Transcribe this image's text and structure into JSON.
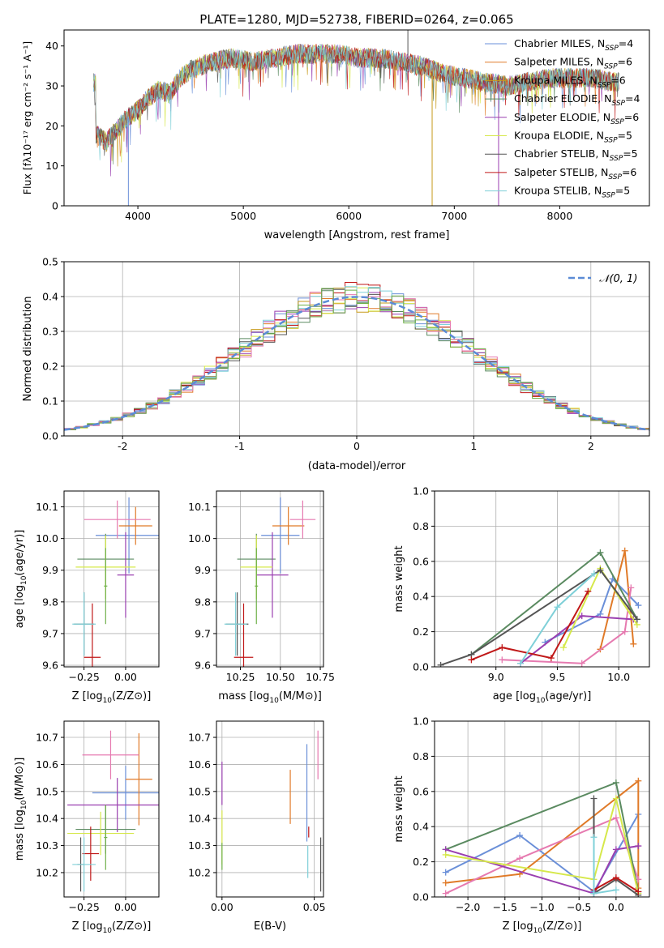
{
  "colors": {
    "chabrier_miles": "#6a8fd8",
    "salpeter_miles": "#e07a28",
    "kroupa_miles": "#c79a1a",
    "chabrier_elodie": "#5a8a60",
    "salpeter_elodie": "#9a3fb0",
    "kroupa_elodie": "#d6e84a",
    "chabrier_stelib": "#555555",
    "salpeter_stelib": "#c01818",
    "kroupa_stelib": "#7fd0d8",
    "pink": "#e67ab0",
    "green": "#6fb04a",
    "gaussian": "#5b8bd6",
    "grid": "#b0b0b0"
  },
  "chart_data": [
    {
      "type": "line",
      "title": "PLATE=1280, MJD=52738, FIBERID=0264, z=0.065",
      "xlabel": "wavelength [Angstrom, rest frame]",
      "ylabel": "Flux [fλ10⁻¹⁷ erg cm⁻² s⁻¹ A⁻¹]",
      "xlim": [
        3300,
        8850
      ],
      "ylim": [
        0,
        44
      ],
      "xticks": [
        4000,
        5000,
        6000,
        7000,
        8000
      ],
      "yticks": [
        0,
        10,
        20,
        30,
        40
      ],
      "legend_position": "top-right",
      "legend": [
        {
          "label": "Chabrier MILES, N",
          "sub": "SSP",
          "eq": "=4",
          "color_key": "chabrier_miles"
        },
        {
          "label": "Salpeter MILES, N",
          "sub": "SSP",
          "eq": "=6",
          "color_key": "salpeter_miles"
        },
        {
          "label": "Kroupa MILES, N",
          "sub": "SSP",
          "eq": "=6",
          "color_key": "kroupa_miles"
        },
        {
          "label": "Chabrier ELODIE, N",
          "sub": "SSP",
          "eq": "=4",
          "color_key": "chabrier_elodie"
        },
        {
          "label": "Salpeter ELODIE, N",
          "sub": "SSP",
          "eq": "=6",
          "color_key": "salpeter_elodie"
        },
        {
          "label": "Kroupa ELODIE, N",
          "sub": "SSP",
          "eq": "=5",
          "color_key": "kroupa_elodie"
        },
        {
          "label": "Chabrier STELIB, N",
          "sub": "SSP",
          "eq": "=5",
          "color_key": "chabrier_stelib"
        },
        {
          "label": "Salpeter STELIB, N",
          "sub": "SSP",
          "eq": "=6",
          "color_key": "salpeter_stelib"
        },
        {
          "label": "Kroupa STELIB, N",
          "sub": "SSP",
          "eq": "=5",
          "color_key": "kroupa_stelib"
        }
      ],
      "continuum": [
        [
          3600,
          18
        ],
        [
          3700,
          16
        ],
        [
          3800,
          19
        ],
        [
          3900,
          22
        ],
        [
          4000,
          24
        ],
        [
          4100,
          27
        ],
        [
          4200,
          29
        ],
        [
          4300,
          28
        ],
        [
          4400,
          32
        ],
        [
          4500,
          34
        ],
        [
          4700,
          36
        ],
        [
          4900,
          37
        ],
        [
          5100,
          36
        ],
        [
          5300,
          37
        ],
        [
          5500,
          38
        ],
        [
          5700,
          38
        ],
        [
          5900,
          38
        ],
        [
          6100,
          37
        ],
        [
          6300,
          37
        ],
        [
          6500,
          36
        ],
        [
          6700,
          35
        ],
        [
          6900,
          33
        ],
        [
          7100,
          32
        ],
        [
          7300,
          31
        ],
        [
          7500,
          30
        ],
        [
          7700,
          31
        ],
        [
          7900,
          32
        ],
        [
          8100,
          32
        ],
        [
          8300,
          32
        ],
        [
          8500,
          31
        ]
      ],
      "noise_amplitude": 2.5,
      "spikes": [
        [
          3910,
          0
        ],
        [
          6790,
          0
        ],
        [
          7420,
          0
        ],
        [
          6560,
          44
        ]
      ]
    },
    {
      "type": "histogram",
      "xlabel": "(data-model)/error",
      "ylabel": "Normed distribution",
      "xlim": [
        -2.5,
        2.5
      ],
      "ylim": [
        0,
        0.5
      ],
      "xticks": [
        -2,
        -1,
        0,
        1,
        2
      ],
      "yticks": [
        0.0,
        0.1,
        0.2,
        0.3,
        0.4,
        0.5
      ],
      "gaussian_label": "𝒩(0, 1)",
      "gaussian_mu": 0,
      "gaussian_sigma": 1,
      "bin_width": 0.1,
      "series_count": 9
    },
    {
      "type": "scatter",
      "subtype": "errorbar",
      "xlabel_main": "Z [log",
      "xlabel_sub": "10",
      "xlabel_rest": "(Z/Z⊙)]",
      "ylabel_main": "age  [log",
      "ylabel_sub": "10",
      "ylabel_rest": "(age/yr)]",
      "xlim": [
        -0.37,
        0.2
      ],
      "ylim": [
        9.595,
        10.15
      ],
      "xticks": [
        -0.25,
        0.0
      ],
      "xtick_labels": [
        "−0.25",
        "0.00"
      ],
      "yticks": [
        9.6,
        9.7,
        9.8,
        9.9,
        10.0,
        10.1
      ],
      "points": [
        {
          "x": 0.02,
          "y": 10.01,
          "xerr": 0.2,
          "yerr": 0.12,
          "color_key": "chabrier_miles"
        },
        {
          "x": 0.06,
          "y": 10.04,
          "xerr": 0.1,
          "yerr": 0.06,
          "color_key": "salpeter_miles"
        },
        {
          "x": -0.05,
          "y": 10.06,
          "xerr": 0.2,
          "yerr": 0.06,
          "color_key": "pink"
        },
        {
          "x": -0.12,
          "y": 9.935,
          "xerr": 0.17,
          "yerr": 0.08,
          "color_key": "chabrier_elodie"
        },
        {
          "x": 0.0,
          "y": 9.885,
          "xerr": 0.05,
          "yerr": 0.135,
          "color_key": "salpeter_elodie"
        },
        {
          "x": -0.12,
          "y": 9.91,
          "xerr": 0.18,
          "yerr": 0.1,
          "color_key": "kroupa_elodie"
        },
        {
          "x": -0.12,
          "y": 9.85,
          "xerr": 0.01,
          "yerr": 0.12,
          "color_key": "green"
        },
        {
          "x": -0.25,
          "y": 9.73,
          "xerr": 0.06,
          "yerr": 0.1,
          "color_key": "chabrier_stelib"
        },
        {
          "x": -0.2,
          "y": 9.625,
          "xerr": 0.05,
          "yerr": 0.17,
          "color_key": "salpeter_stelib"
        },
        {
          "x": -0.25,
          "y": 9.73,
          "xerr": 0.07,
          "yerr": 0.1,
          "color_key": "kroupa_stelib"
        }
      ]
    },
    {
      "type": "scatter",
      "subtype": "errorbar",
      "xlabel_main": "mass [log",
      "xlabel_sub": "10",
      "xlabel_rest": "(M/M⊙)]",
      "xlim": [
        10.1,
        10.77
      ],
      "ylim": [
        9.595,
        10.15
      ],
      "xticks": [
        10.25,
        10.5,
        10.75
      ],
      "xtick_labels": [
        "10.25",
        "10.50",
        "10.75"
      ],
      "yticks": [
        9.6,
        9.7,
        9.8,
        9.9,
        10.0,
        10.1
      ],
      "points": [
        {
          "x": 10.5,
          "y": 10.01,
          "xerr": 0.12,
          "yerr": 0.12,
          "color_key": "chabrier_miles"
        },
        {
          "x": 10.55,
          "y": 10.04,
          "xerr": 0.1,
          "yerr": 0.06,
          "color_key": "salpeter_miles"
        },
        {
          "x": 10.64,
          "y": 10.06,
          "xerr": 0.08,
          "yerr": 0.06,
          "color_key": "pink"
        },
        {
          "x": 10.35,
          "y": 9.935,
          "xerr": 0.12,
          "yerr": 0.08,
          "color_key": "chabrier_elodie"
        },
        {
          "x": 10.45,
          "y": 9.885,
          "xerr": 0.1,
          "yerr": 0.135,
          "color_key": "salpeter_elodie"
        },
        {
          "x": 10.35,
          "y": 9.91,
          "xerr": 0.1,
          "yerr": 0.1,
          "color_key": "kroupa_elodie"
        },
        {
          "x": 10.35,
          "y": 9.85,
          "xerr": 0.01,
          "yerr": 0.12,
          "color_key": "green"
        },
        {
          "x": 10.23,
          "y": 9.73,
          "xerr": 0.07,
          "yerr": 0.1,
          "color_key": "chabrier_stelib"
        },
        {
          "x": 10.27,
          "y": 9.625,
          "xerr": 0.06,
          "yerr": 0.17,
          "color_key": "salpeter_stelib"
        },
        {
          "x": 10.22,
          "y": 9.73,
          "xerr": 0.07,
          "yerr": 0.1,
          "color_key": "kroupa_stelib"
        }
      ]
    },
    {
      "type": "line",
      "xlabel_main": "age  [log",
      "xlabel_sub": "10",
      "xlabel_rest": "(age/yr)]",
      "ylabel": "mass weight",
      "xlim": [
        8.5,
        10.25
      ],
      "ylim": [
        0,
        1
      ],
      "xticks": [
        9.0,
        9.5,
        10.0
      ],
      "xtick_labels": [
        "9.0",
        "9.5",
        "10.0"
      ],
      "yticks": [
        0.0,
        0.2,
        0.4,
        0.6,
        0.8,
        1.0
      ],
      "series": [
        {
          "color_key": "chabrier_miles",
          "points": [
            [
              9.4,
              0.14
            ],
            [
              9.85,
              0.3
            ],
            [
              9.95,
              0.5
            ],
            [
              10.16,
              0.35
            ]
          ]
        },
        {
          "color_key": "salpeter_miles",
          "points": [
            [
              9.85,
              0.1
            ],
            [
              10.05,
              0.66
            ],
            [
              10.12,
              0.13
            ]
          ]
        },
        {
          "color_key": "pink",
          "points": [
            [
              9.05,
              0.04
            ],
            [
              9.7,
              0.02
            ],
            [
              10.05,
              0.2
            ],
            [
              10.1,
              0.45
            ]
          ]
        },
        {
          "color_key": "chabrier_elodie",
          "points": [
            [
              8.8,
              0.07
            ],
            [
              9.85,
              0.65
            ],
            [
              10.15,
              0.27
            ]
          ]
        },
        {
          "color_key": "salpeter_elodie",
          "points": [
            [
              9.2,
              0.02
            ],
            [
              9.7,
              0.29
            ],
            [
              10.12,
              0.27
            ]
          ]
        },
        {
          "color_key": "kroupa_elodie",
          "points": [
            [
              9.55,
              0.11
            ],
            [
              9.85,
              0.56
            ],
            [
              10.15,
              0.24
            ]
          ]
        },
        {
          "color_key": "chabrier_stelib",
          "points": [
            [
              8.55,
              0.01
            ],
            [
              8.8,
              0.07
            ],
            [
              9.85,
              0.55
            ],
            [
              10.15,
              0.27
            ]
          ]
        },
        {
          "color_key": "salpeter_stelib",
          "points": [
            [
              8.8,
              0.04
            ],
            [
              9.05,
              0.11
            ],
            [
              9.45,
              0.05
            ],
            [
              9.75,
              0.43
            ]
          ]
        },
        {
          "color_key": "kroupa_stelib",
          "points": [
            [
              9.2,
              0.02
            ],
            [
              9.5,
              0.34
            ],
            [
              9.8,
              0.53
            ]
          ]
        }
      ]
    },
    {
      "type": "scatter",
      "subtype": "errorbar",
      "xlabel_main": "Z [log",
      "xlabel_sub": "10",
      "xlabel_rest": "(Z/Z⊙)]",
      "ylabel_main": "mass [log",
      "ylabel_sub": "10",
      "ylabel_rest": "(M/M⊙)]",
      "xlim": [
        -0.37,
        0.2
      ],
      "ylim": [
        10.11,
        10.76
      ],
      "xticks": [
        -0.25,
        0.0
      ],
      "xtick_labels": [
        "−0.25",
        "0.00"
      ],
      "yticks": [
        10.2,
        10.3,
        10.4,
        10.5,
        10.6,
        10.7
      ],
      "points": [
        {
          "x": 0.0,
          "y": 10.495,
          "xerr": 0.2,
          "yerr": 0.1,
          "color_key": "chabrier_miles"
        },
        {
          "x": 0.08,
          "y": 10.545,
          "xerr": 0.08,
          "yerr": 0.17,
          "color_key": "salpeter_miles"
        },
        {
          "x": -0.09,
          "y": 10.635,
          "xerr": 0.17,
          "yerr": 0.09,
          "color_key": "pink"
        },
        {
          "x": -0.12,
          "y": 10.36,
          "xerr": 0.18,
          "yerr": 0.09,
          "color_key": "chabrier_elodie"
        },
        {
          "x": -0.05,
          "y": 10.45,
          "xerr": 0.3,
          "yerr": 0.1,
          "color_key": "salpeter_elodie"
        },
        {
          "x": -0.15,
          "y": 10.345,
          "xerr": 0.2,
          "yerr": 0.08,
          "color_key": "kroupa_elodie"
        },
        {
          "x": -0.12,
          "y": 10.33,
          "xerr": 0.01,
          "yerr": 0.12,
          "color_key": "green"
        },
        {
          "x": -0.27,
          "y": 10.23,
          "xerr": 0.02,
          "yerr": 0.1,
          "color_key": "chabrier_stelib"
        },
        {
          "x": -0.21,
          "y": 10.27,
          "xerr": 0.05,
          "yerr": 0.1,
          "color_key": "salpeter_stelib"
        },
        {
          "x": -0.25,
          "y": 10.23,
          "xerr": 0.07,
          "yerr": 0.1,
          "color_key": "kroupa_stelib"
        }
      ]
    },
    {
      "type": "scatter",
      "subtype": "errorbar",
      "xlabel": "E(B-V)",
      "xlim": [
        -0.003,
        0.055
      ],
      "ylim": [
        10.11,
        10.76
      ],
      "xticks": [
        0.0,
        0.05
      ],
      "xtick_labels": [
        "0.00",
        "0.05"
      ],
      "yticks": [
        10.2,
        10.3,
        10.4,
        10.5,
        10.6,
        10.7
      ],
      "points": [
        {
          "x": 0.0,
          "y": 10.53,
          "yerr": 0.08,
          "color_key": "salpeter_elodie"
        },
        {
          "x": 0.0,
          "y": 10.33,
          "yerr": 0.1,
          "color_key": "kroupa_elodie"
        },
        {
          "x": 0.0,
          "y": 10.26,
          "yerr": 0.05,
          "color_key": "green"
        },
        {
          "x": 0.037,
          "y": 10.48,
          "yerr": 0.1,
          "color_key": "salpeter_miles"
        },
        {
          "x": 0.046,
          "y": 10.495,
          "yerr": 0.18,
          "color_key": "chabrier_miles"
        },
        {
          "x": 0.0465,
          "y": 10.24,
          "yerr": 0.06,
          "color_key": "kroupa_stelib"
        },
        {
          "x": 0.047,
          "y": 10.35,
          "yerr": 0.02,
          "color_key": "salpeter_stelib"
        },
        {
          "x": 0.052,
          "y": 10.635,
          "yerr": 0.09,
          "color_key": "pink"
        },
        {
          "x": 0.0535,
          "y": 10.23,
          "yerr": 0.1,
          "color_key": "chabrier_stelib"
        }
      ]
    },
    {
      "type": "line",
      "xlabel_main": "Z [log",
      "xlabel_sub": "10",
      "xlabel_rest": "(Z/Z⊙)]",
      "ylabel": "mass weight",
      "xlim": [
        -2.45,
        0.45
      ],
      "ylim": [
        0,
        1
      ],
      "xticks": [
        -2.0,
        -1.5,
        -1.0,
        -0.5,
        0.0
      ],
      "xtick_labels": [
        "−2.0",
        "−1.5",
        "−1.0",
        "−0.5",
        "0.0"
      ],
      "yticks": [
        0.0,
        0.2,
        0.4,
        0.6,
        0.8,
        1.0
      ],
      "series": [
        {
          "color_key": "chabrier_miles",
          "points": [
            [
              -2.3,
              0.14
            ],
            [
              -1.3,
              0.35
            ],
            [
              -0.3,
              0.03
            ],
            [
              0.3,
              0.47
            ]
          ]
        },
        {
          "color_key": "salpeter_miles",
          "points": [
            [
              -2.3,
              0.08
            ],
            [
              -1.3,
              0.13
            ],
            [
              0.3,
              0.66
            ],
            [
              0.3,
              0.05
            ]
          ]
        },
        {
          "color_key": "pink",
          "points": [
            [
              -2.3,
              0.02
            ],
            [
              -1.3,
              0.22
            ],
            [
              0.0,
              0.45
            ],
            [
              0.3,
              0.1
            ]
          ]
        },
        {
          "color_key": "chabrier_elodie",
          "points": [
            [
              -2.3,
              0.27
            ],
            [
              0.0,
              0.65
            ],
            [
              0.3,
              0.03
            ]
          ]
        },
        {
          "color_key": "salpeter_elodie",
          "points": [
            [
              -2.3,
              0.27
            ],
            [
              -0.3,
              0.02
            ],
            [
              0.0,
              0.27
            ],
            [
              0.3,
              0.29
            ]
          ]
        },
        {
          "color_key": "kroupa_elodie",
          "points": [
            [
              -2.3,
              0.24
            ],
            [
              -0.3,
              0.1
            ],
            [
              0.0,
              0.56
            ],
            [
              0.3,
              0.02
            ]
          ]
        },
        {
          "color_key": "chabrier_stelib",
          "points": [
            [
              -0.3,
              0.56
            ],
            [
              -0.3,
              0.02
            ],
            [
              0.0,
              0.1
            ],
            [
              0.3,
              0.01
            ]
          ]
        },
        {
          "color_key": "salpeter_stelib",
          "points": [
            [
              -0.3,
              0.04
            ],
            [
              0.0,
              0.11
            ],
            [
              0.3,
              0.03
            ]
          ]
        },
        {
          "color_key": "kroupa_stelib",
          "points": [
            [
              -0.3,
              0.34
            ],
            [
              -0.3,
              0.02
            ],
            [
              0.0,
              0.04
            ]
          ]
        }
      ]
    }
  ]
}
